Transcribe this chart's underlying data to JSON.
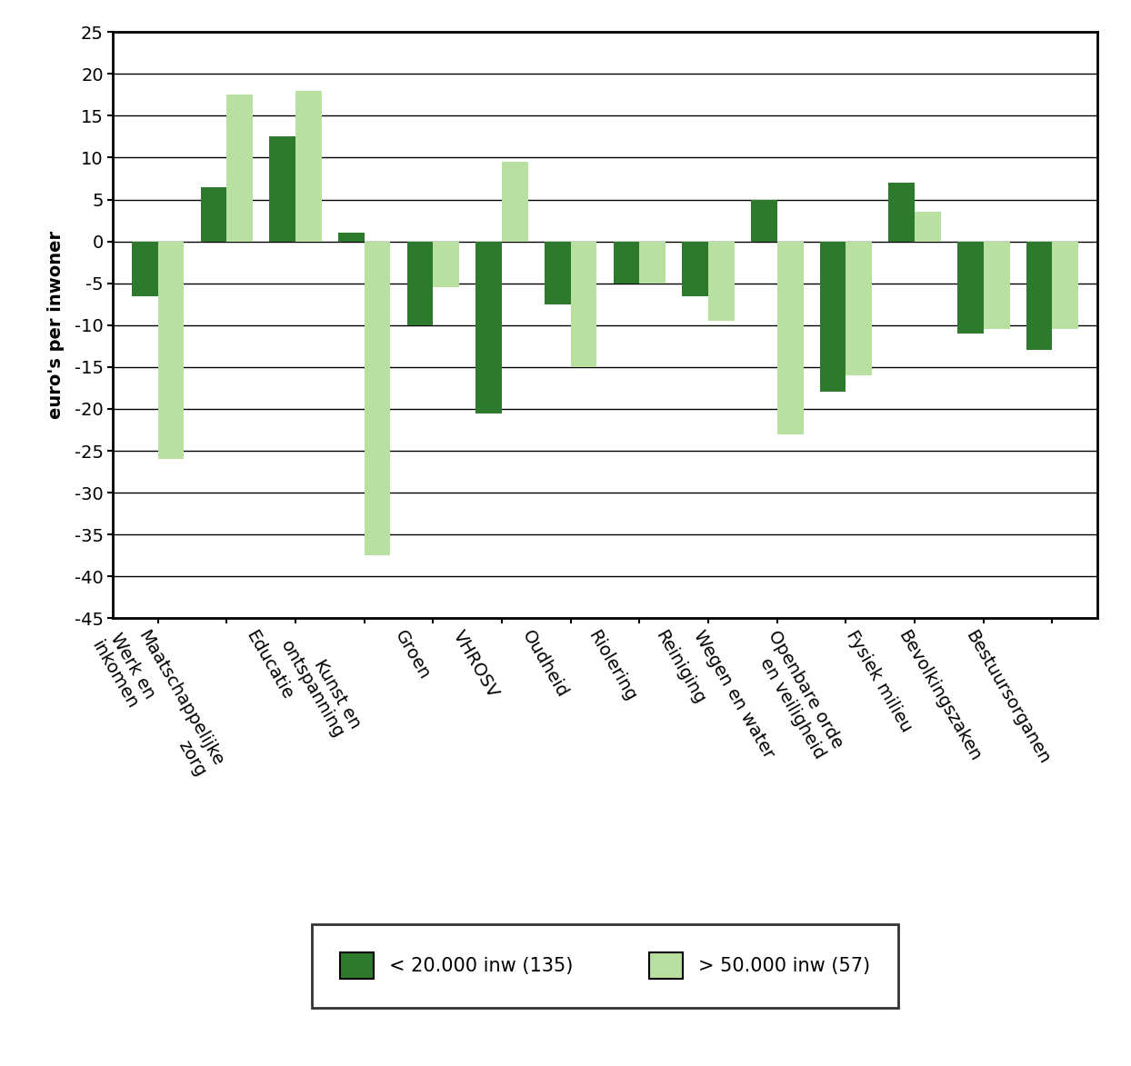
{
  "categories": [
    "Werk en\ninkomen",
    "Maatschappelijke\nzorg",
    "Educatie",
    "Kunst en\nontspanning",
    "Groen",
    "VHROSV",
    "Oudheid",
    "Riolering",
    "Reiniging",
    "Wegen en water",
    "Openbare orde\nen veiligheid",
    "Fysiek milieu",
    "Bevolkingszaken",
    "Bestuursorganen"
  ],
  "series_small": [
    -6.5,
    6.5,
    12.5,
    1.0,
    -10.0,
    -20.5,
    -7.5,
    -5.0,
    -6.5,
    5.0,
    -18.0,
    7.0,
    -11.0,
    -13.0
  ],
  "series_large": [
    -26.0,
    17.5,
    18.0,
    -37.5,
    -5.5,
    9.5,
    -15.0,
    -5.0,
    -9.5,
    -23.0,
    -16.0,
    3.5,
    -10.5,
    -10.5
  ],
  "color_small": "#2d7a2d",
  "color_large": "#b8e0a0",
  "ylabel": "euro's per inwoner",
  "ylim": [
    -45,
    25
  ],
  "yticks": [
    25,
    20,
    15,
    10,
    5,
    0,
    -5,
    -10,
    -15,
    -20,
    -25,
    -30,
    -35,
    -40,
    -45
  ],
  "legend_small_label": "< 20.000 inw (135)",
  "legend_large_label": "> 50.000 inw (57)",
  "bar_width": 0.38,
  "background_color": "#ffffff",
  "plot_bg_color": "#ffffff",
  "grid_color": "#000000",
  "spine_color": "#000000",
  "tick_label_fontsize": 14,
  "ylabel_fontsize": 14,
  "legend_fontsize": 15
}
